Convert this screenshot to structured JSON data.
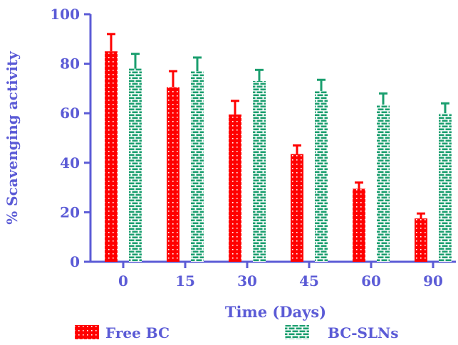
{
  "chart_data": {
    "type": "bar",
    "title": "",
    "xlabel": "Time (Days)",
    "ylabel": "% Scavenging activity",
    "categories": [
      "0",
      "15",
      "30",
      "45",
      "60",
      "90"
    ],
    "ylim": [
      0,
      100
    ],
    "yticks": [
      0,
      20,
      40,
      60,
      80,
      100
    ],
    "grid": false,
    "legend_position": "bottom",
    "error_bars": true,
    "series": [
      {
        "name": "Free BC",
        "values": [
          85,
          70.5,
          59.5,
          43.5,
          29.5,
          17.5
        ],
        "errors": [
          7,
          6.5,
          5.5,
          3.5,
          2.5,
          2
        ],
        "color": "#ff0000",
        "pattern": "dotted"
      },
      {
        "name": "BC-SLNs",
        "values": [
          78,
          77,
          73,
          69,
          63.5,
          60
        ],
        "errors": [
          6,
          5.5,
          4.5,
          4.5,
          4.5,
          4
        ],
        "color": "#1a9e6e",
        "pattern": "brick"
      }
    ],
    "axis_color": "#5b5bd6",
    "text_color": "#5b5bd6"
  }
}
